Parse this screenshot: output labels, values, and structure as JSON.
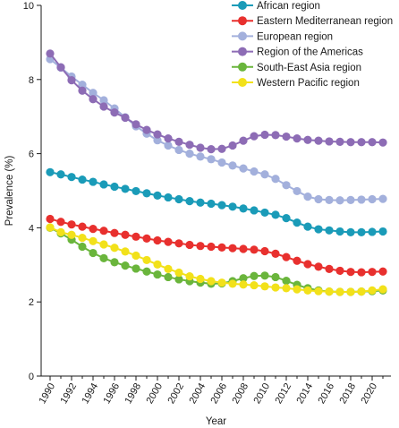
{
  "chart_data": {
    "type": "line",
    "title": "",
    "xlabel": "Year",
    "ylabel": "Prevalence (%)",
    "xlim": [
      1990,
      2021
    ],
    "ylim": [
      0,
      10
    ],
    "yticks": [
      0,
      2,
      4,
      6,
      8,
      10
    ],
    "xticks": [
      1990,
      1992,
      1994,
      1996,
      1998,
      2000,
      2002,
      2004,
      2006,
      2008,
      2010,
      2012,
      2014,
      2016,
      2018,
      2020
    ],
    "grid": false,
    "legend_position": "top-right",
    "x": [
      1990,
      1991,
      1992,
      1993,
      1994,
      1995,
      1996,
      1997,
      1998,
      1999,
      2000,
      2001,
      2002,
      2003,
      2004,
      2005,
      2006,
      2007,
      2008,
      2009,
      2010,
      2011,
      2012,
      2013,
      2014,
      2015,
      2016,
      2017,
      2018,
      2019,
      2020,
      2021
    ],
    "series": [
      {
        "name": "African region",
        "color": "#1a9bb8",
        "values": [
          5.5,
          5.44,
          5.37,
          5.3,
          5.24,
          5.17,
          5.11,
          5.05,
          4.99,
          4.93,
          4.87,
          4.82,
          4.77,
          4.72,
          4.68,
          4.65,
          4.61,
          4.57,
          4.52,
          4.47,
          4.41,
          4.35,
          4.26,
          4.14,
          4.03,
          3.96,
          3.93,
          3.9,
          3.88,
          3.88,
          3.89,
          3.9
        ]
      },
      {
        "name": "Eastern Mediterranean region",
        "color": "#e8302e",
        "values": [
          4.24,
          4.16,
          4.09,
          4.03,
          3.97,
          3.92,
          3.86,
          3.81,
          3.76,
          3.71,
          3.66,
          3.62,
          3.58,
          3.54,
          3.51,
          3.49,
          3.47,
          3.45,
          3.43,
          3.41,
          3.37,
          3.3,
          3.21,
          3.11,
          3.02,
          2.95,
          2.89,
          2.84,
          2.81,
          2.8,
          2.81,
          2.82
        ]
      },
      {
        "name": "European region",
        "color": "#a3b0dc",
        "values": [
          8.55,
          8.32,
          8.08,
          7.86,
          7.64,
          7.44,
          7.22,
          6.98,
          6.74,
          6.54,
          6.36,
          6.22,
          6.1,
          6.0,
          5.92,
          5.85,
          5.76,
          5.68,
          5.6,
          5.52,
          5.44,
          5.32,
          5.15,
          4.99,
          4.84,
          4.77,
          4.75,
          4.74,
          4.75,
          4.76,
          4.77,
          4.78
        ]
      },
      {
        "name": "Region of the Americas",
        "color": "#8d6cb5",
        "values": [
          8.7,
          8.33,
          7.98,
          7.7,
          7.47,
          7.27,
          7.11,
          6.97,
          6.79,
          6.64,
          6.52,
          6.41,
          6.32,
          6.24,
          6.16,
          6.12,
          6.13,
          6.22,
          6.35,
          6.47,
          6.51,
          6.5,
          6.46,
          6.41,
          6.37,
          6.35,
          6.33,
          6.32,
          6.31,
          6.31,
          6.31,
          6.3
        ]
      },
      {
        "name": "South-East Asia region",
        "color": "#6ab53c",
        "values": [
          4.0,
          3.85,
          3.68,
          3.49,
          3.32,
          3.18,
          3.07,
          2.98,
          2.9,
          2.82,
          2.74,
          2.67,
          2.61,
          2.56,
          2.52,
          2.49,
          2.5,
          2.56,
          2.64,
          2.7,
          2.71,
          2.67,
          2.57,
          2.46,
          2.37,
          2.31,
          2.28,
          2.27,
          2.27,
          2.28,
          2.29,
          2.31
        ]
      },
      {
        "name": "Western Pacific region",
        "color": "#f2e11a",
        "values": [
          4.01,
          3.88,
          3.81,
          3.73,
          3.64,
          3.55,
          3.46,
          3.36,
          3.25,
          3.13,
          3.01,
          2.89,
          2.79,
          2.69,
          2.62,
          2.56,
          2.52,
          2.49,
          2.47,
          2.45,
          2.42,
          2.39,
          2.37,
          2.34,
          2.31,
          2.29,
          2.28,
          2.27,
          2.27,
          2.28,
          2.31,
          2.34
        ]
      }
    ]
  }
}
